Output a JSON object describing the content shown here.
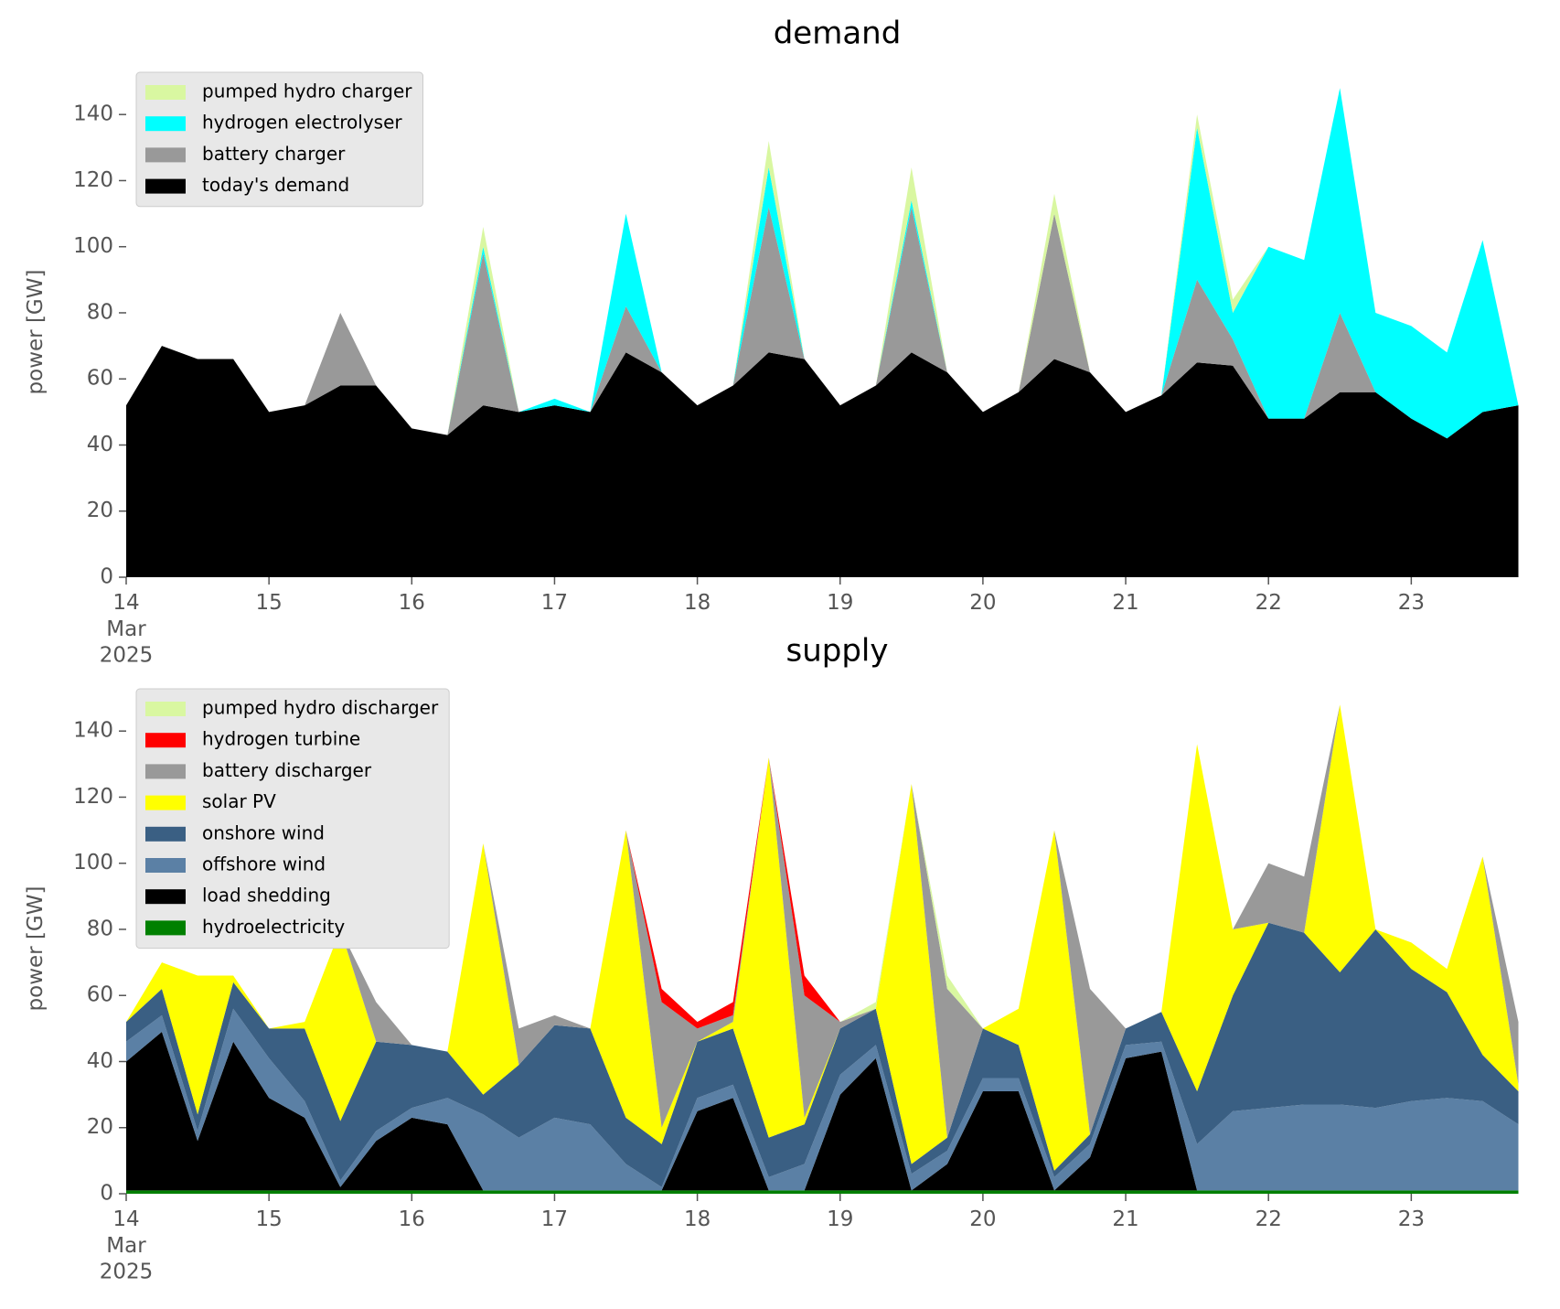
{
  "chart_data": [
    {
      "type": "stacked_area",
      "title": "demand",
      "y_label": "power [GW]",
      "legend": "upper left",
      "x": [
        "2025-03-14 00:00",
        "2025-03-14 06:00",
        "2025-03-14 12:00",
        "2025-03-14 18:00",
        "2025-03-15 00:00",
        "2025-03-15 06:00",
        "2025-03-15 12:00",
        "2025-03-15 18:00",
        "2025-03-16 00:00",
        "2025-03-16 06:00",
        "2025-03-16 12:00",
        "2025-03-16 18:00",
        "2025-03-17 00:00",
        "2025-03-17 06:00",
        "2025-03-17 12:00",
        "2025-03-17 18:00",
        "2025-03-18 00:00",
        "2025-03-18 06:00",
        "2025-03-18 12:00",
        "2025-03-18 18:00",
        "2025-03-19 00:00",
        "2025-03-19 06:00",
        "2025-03-19 12:00",
        "2025-03-19 18:00",
        "2025-03-20 00:00",
        "2025-03-20 06:00",
        "2025-03-20 12:00",
        "2025-03-20 18:00",
        "2025-03-21 00:00",
        "2025-03-21 06:00",
        "2025-03-21 12:00",
        "2025-03-21 18:00",
        "2025-03-22 00:00",
        "2025-03-22 06:00",
        "2025-03-22 12:00",
        "2025-03-22 18:00",
        "2025-03-23 00:00",
        "2025-03-23 06:00",
        "2025-03-23 12:00",
        "2025-03-23 18:00"
      ],
      "xlim": [
        "2025-03-14 00:00",
        "2025-03-23 23:00"
      ],
      "xticks": [
        {
          "value": "2025-03-14 00:00",
          "label": "14\nMar\n2025"
        },
        {
          "value": "2025-03-15 00:00",
          "label": "15"
        },
        {
          "value": "2025-03-16 00:00",
          "label": "16"
        },
        {
          "value": "2025-03-17 00:00",
          "label": "17"
        },
        {
          "value": "2025-03-18 00:00",
          "label": "18"
        },
        {
          "value": "2025-03-19 00:00",
          "label": "19"
        },
        {
          "value": "2025-03-20 00:00",
          "label": "20"
        },
        {
          "value": "2025-03-21 00:00",
          "label": "21"
        },
        {
          "value": "2025-03-22 00:00",
          "label": "22"
        },
        {
          "value": "2025-03-23 00:00",
          "label": "23"
        }
      ],
      "ylim": [
        0,
        155
      ],
      "yticks": [
        0,
        20,
        40,
        60,
        80,
        100,
        120,
        140
      ],
      "series": [
        {
          "name": "today's demand",
          "color": "#000000",
          "values": [
            52,
            70,
            66,
            66,
            50,
            52,
            58,
            58,
            45,
            43,
            52,
            50,
            52,
            50,
            68,
            62,
            52,
            58,
            68,
            66,
            52,
            58,
            68,
            62,
            50,
            56,
            66,
            62,
            50,
            55,
            65,
            64,
            48,
            48,
            56,
            56,
            48,
            42,
            50,
            52
          ]
        },
        {
          "name": "battery charger",
          "color": "#999999",
          "values": [
            0,
            0,
            0,
            0,
            0,
            0,
            22,
            0,
            0,
            0,
            46,
            0,
            0,
            0,
            14,
            0,
            0,
            0,
            44,
            0,
            0,
            0,
            44,
            0,
            0,
            0,
            44,
            0,
            0,
            0,
            25,
            8,
            0,
            0,
            24,
            0,
            0,
            0,
            0,
            0
          ]
        },
        {
          "name": "hydrogen electrolyser",
          "color": "#00ffff",
          "values": [
            0,
            0,
            0,
            0,
            0,
            0,
            0,
            0,
            0,
            0,
            2,
            0,
            2,
            0,
            28,
            0,
            0,
            0,
            12,
            0,
            0,
            0,
            2,
            0,
            0,
            0,
            0,
            0,
            0,
            0,
            46,
            8,
            52,
            48,
            68,
            24,
            28,
            26,
            52,
            0
          ]
        },
        {
          "name": "pumped hydro charger",
          "color": "#d9f7a1",
          "values": [
            0,
            0,
            0,
            0,
            0,
            0,
            0,
            0,
            0,
            0,
            6,
            0,
            0,
            0,
            0,
            0,
            0,
            0,
            8,
            0,
            0,
            0,
            10,
            0,
            0,
            0,
            6,
            0,
            0,
            0,
            4,
            4,
            0,
            0,
            0,
            0,
            0,
            0,
            0,
            0
          ]
        }
      ]
    },
    {
      "type": "stacked_area",
      "title": "supply",
      "y_label": "power [GW]",
      "legend": "upper left",
      "x": [
        "2025-03-14 00:00",
        "2025-03-14 06:00",
        "2025-03-14 12:00",
        "2025-03-14 18:00",
        "2025-03-15 00:00",
        "2025-03-15 06:00",
        "2025-03-15 12:00",
        "2025-03-15 18:00",
        "2025-03-16 00:00",
        "2025-03-16 06:00",
        "2025-03-16 12:00",
        "2025-03-16 18:00",
        "2025-03-17 00:00",
        "2025-03-17 06:00",
        "2025-03-17 12:00",
        "2025-03-17 18:00",
        "2025-03-18 00:00",
        "2025-03-18 06:00",
        "2025-03-18 12:00",
        "2025-03-18 18:00",
        "2025-03-19 00:00",
        "2025-03-19 06:00",
        "2025-03-19 12:00",
        "2025-03-19 18:00",
        "2025-03-20 00:00",
        "2025-03-20 06:00",
        "2025-03-20 12:00",
        "2025-03-20 18:00",
        "2025-03-21 00:00",
        "2025-03-21 06:00",
        "2025-03-21 12:00",
        "2025-03-21 18:00",
        "2025-03-22 00:00",
        "2025-03-22 06:00",
        "2025-03-22 12:00",
        "2025-03-22 18:00",
        "2025-03-23 00:00",
        "2025-03-23 06:00",
        "2025-03-23 12:00",
        "2025-03-23 18:00"
      ],
      "xlim": [
        "2025-03-14 00:00",
        "2025-03-23 23:00"
      ],
      "xticks": [
        {
          "value": "2025-03-14 00:00",
          "label": "14\nMar\n2025"
        },
        {
          "value": "2025-03-15 00:00",
          "label": "15"
        },
        {
          "value": "2025-03-16 00:00",
          "label": "16"
        },
        {
          "value": "2025-03-17 00:00",
          "label": "17"
        },
        {
          "value": "2025-03-18 00:00",
          "label": "18"
        },
        {
          "value": "2025-03-19 00:00",
          "label": "19"
        },
        {
          "value": "2025-03-20 00:00",
          "label": "20"
        },
        {
          "value": "2025-03-21 00:00",
          "label": "21"
        },
        {
          "value": "2025-03-22 00:00",
          "label": "22"
        },
        {
          "value": "2025-03-23 00:00",
          "label": "23"
        }
      ],
      "ylim": [
        0,
        155
      ],
      "yticks": [
        0,
        20,
        40,
        60,
        80,
        100,
        120,
        140
      ],
      "series": [
        {
          "name": "hydroelectricity",
          "color": "#008000",
          "values": [
            1,
            1,
            1,
            1,
            1,
            1,
            1,
            1,
            1,
            1,
            1,
            1,
            1,
            1,
            1,
            1,
            1,
            1,
            1,
            1,
            1,
            1,
            1,
            1,
            1,
            1,
            1,
            1,
            1,
            1,
            1,
            1,
            1,
            1,
            1,
            1,
            1,
            1,
            1,
            1
          ]
        },
        {
          "name": "load shedding",
          "color": "#000000",
          "values": [
            39,
            48,
            15,
            45,
            28,
            22,
            1,
            15,
            22,
            20,
            0,
            0,
            0,
            0,
            0,
            0,
            24,
            28,
            0,
            0,
            29,
            40,
            0,
            8,
            30,
            30,
            0,
            10,
            40,
            42,
            0,
            0,
            0,
            0,
            0,
            0,
            0,
            0,
            0,
            0
          ]
        },
        {
          "name": "offshore wind",
          "color": "#5b80a5",
          "values": [
            6,
            5,
            3,
            10,
            12,
            5,
            2,
            3,
            3,
            8,
            23,
            16,
            22,
            20,
            8,
            1,
            4,
            4,
            4,
            8,
            6,
            4,
            5,
            4,
            4,
            4,
            4,
            4,
            4,
            3,
            14,
            24,
            25,
            26,
            26,
            25,
            27,
            28,
            27,
            20
          ]
        },
        {
          "name": "onshore wind",
          "color": "#3a5f83",
          "values": [
            6,
            8,
            5,
            8,
            9,
            22,
            18,
            27,
            19,
            14,
            6,
            22,
            28,
            29,
            14,
            13,
            17,
            17,
            12,
            12,
            14,
            11,
            3,
            4,
            15,
            10,
            2,
            3,
            5,
            9,
            16,
            35,
            56,
            52,
            40,
            54,
            40,
            32,
            14,
            10
          ]
        },
        {
          "name": "solar PV",
          "color": "#ffff00",
          "values": [
            0,
            8,
            42,
            2,
            0,
            2,
            58,
            0,
            0,
            0,
            76,
            0,
            0,
            0,
            87,
            5,
            0,
            2,
            115,
            2,
            0,
            0,
            115,
            0,
            0,
            11,
            103,
            0,
            0,
            0,
            105,
            20,
            0,
            0,
            81,
            0,
            8,
            7,
            60,
            2
          ]
        },
        {
          "name": "battery discharger",
          "color": "#999999",
          "values": [
            0,
            0,
            0,
            0,
            0,
            0,
            0,
            12,
            0,
            0,
            0,
            11,
            3,
            0,
            0,
            38,
            4,
            2,
            0,
            37,
            2,
            0,
            0,
            45,
            0,
            0,
            0,
            44,
            0,
            0,
            0,
            0,
            18,
            17,
            0,
            0,
            0,
            0,
            0,
            19
          ]
        },
        {
          "name": "hydrogen turbine",
          "color": "#ff0000",
          "values": [
            0,
            0,
            0,
            0,
            0,
            0,
            0,
            0,
            0,
            0,
            0,
            0,
            0,
            0,
            0,
            4,
            2,
            4,
            0,
            6,
            0,
            0,
            0,
            0,
            0,
            0,
            0,
            0,
            0,
            0,
            0,
            0,
            0,
            0,
            0,
            0,
            0,
            0,
            0,
            0
          ]
        },
        {
          "name": "pumped hydro discharger",
          "color": "#d9f7a1",
          "values": [
            0,
            0,
            0,
            0,
            0,
            0,
            0,
            0,
            0,
            0,
            0,
            0,
            0,
            0,
            0,
            0,
            0,
            0,
            0,
            0,
            0,
            2,
            0,
            4,
            0,
            0,
            0,
            0,
            0,
            0,
            0,
            0,
            0,
            0,
            0,
            0,
            0,
            0,
            0,
            0
          ]
        }
      ]
    }
  ]
}
